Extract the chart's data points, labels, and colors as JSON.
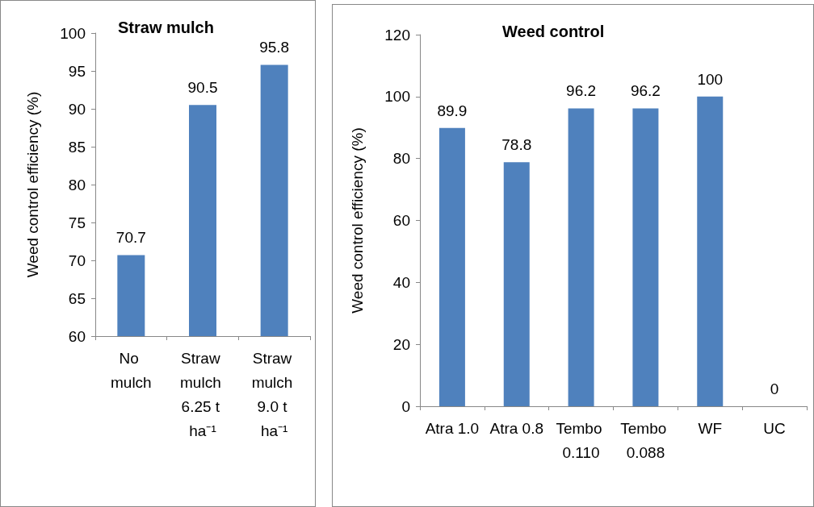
{
  "chart_data": [
    {
      "type": "bar",
      "title": "Straw mulch",
      "ylabel": "Weed control efficiency (%)",
      "categories": [
        "No mulch",
        "Straw mulch 6.25 t ha⁻¹",
        "Straw mulch 9.0 t ha⁻¹"
      ],
      "values": [
        70.7,
        90.5,
        95.8
      ],
      "color": "#4f81bd",
      "ylim": [
        60,
        100
      ],
      "yticks": [
        60,
        65,
        70,
        75,
        80,
        85,
        90,
        95,
        100
      ],
      "data_labels": true
    },
    {
      "type": "bar",
      "title": "Weed control",
      "ylabel": "Weed control efficiency (%)",
      "categories": [
        "Atra 1.0",
        "Atra 0.8",
        "Tembo 0.110",
        "Tembo 0.088",
        "WF",
        "UC"
      ],
      "values": [
        89.9,
        78.8,
        96.2,
        96.2,
        100,
        0
      ],
      "color": "#4f81bd",
      "ylim": [
        0,
        120
      ],
      "yticks": [
        0,
        20,
        40,
        60,
        80,
        100,
        120
      ],
      "data_labels": true
    }
  ]
}
